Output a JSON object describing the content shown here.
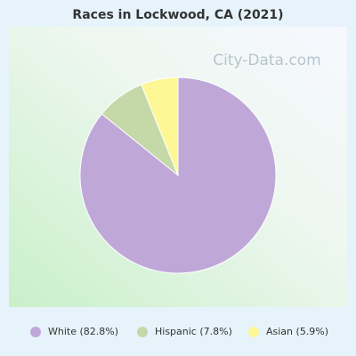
{
  "chart_data": {
    "type": "pie",
    "title": "Races in Lockwood, CA (2021)",
    "watermark": "City-Data.com",
    "values": [
      82.8,
      7.8,
      5.9
    ],
    "value_labels": [
      "White (82.8%)",
      "Hispanic (7.8%)",
      "Asian (5.9%)"
    ],
    "colors": [
      "#bfa8d8",
      "#c4d8a8",
      "#fdf796"
    ],
    "legend": "bottom"
  }
}
